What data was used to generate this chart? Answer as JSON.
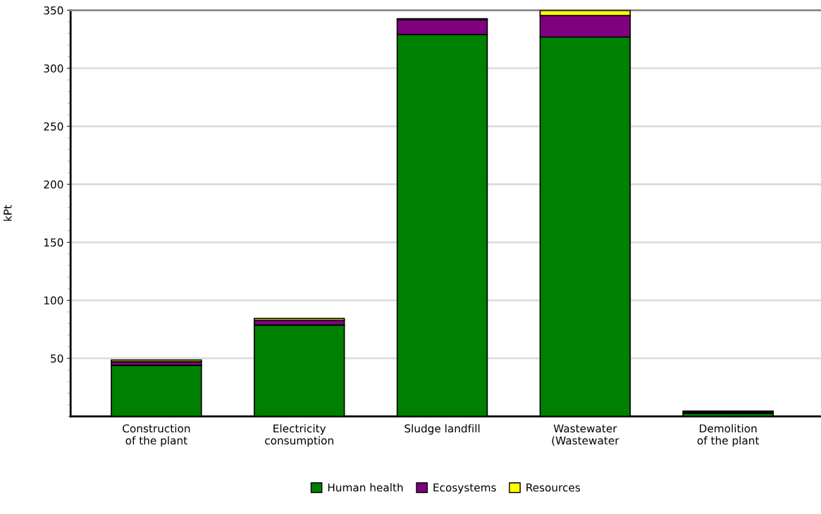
{
  "chart_data": {
    "type": "bar",
    "stacked": true,
    "ylabel": "kPt",
    "categories": [
      "Construction\nof the plant",
      "Electricity\nconsumption",
      "Sludge landfill",
      "Wastewater\n(Wastewater",
      "Demolition\nof the plant"
    ],
    "series": [
      {
        "name": "Human health",
        "color": "#008000",
        "values": [
          44,
          78.7,
          329,
          327,
          2.5
        ]
      },
      {
        "name": "Ecosystems",
        "color": "#800080",
        "values": [
          3,
          4,
          12.8,
          18.4,
          1
        ]
      },
      {
        "name": "Resources",
        "color": "#ffff00",
        "values": [
          1.5,
          1.6,
          1,
          4.4,
          1
        ]
      }
    ],
    "ylim": [
      0,
      350
    ],
    "yticks": [
      50,
      100,
      150,
      200,
      250,
      300,
      350
    ],
    "grid": "y",
    "legend": "bottom"
  }
}
